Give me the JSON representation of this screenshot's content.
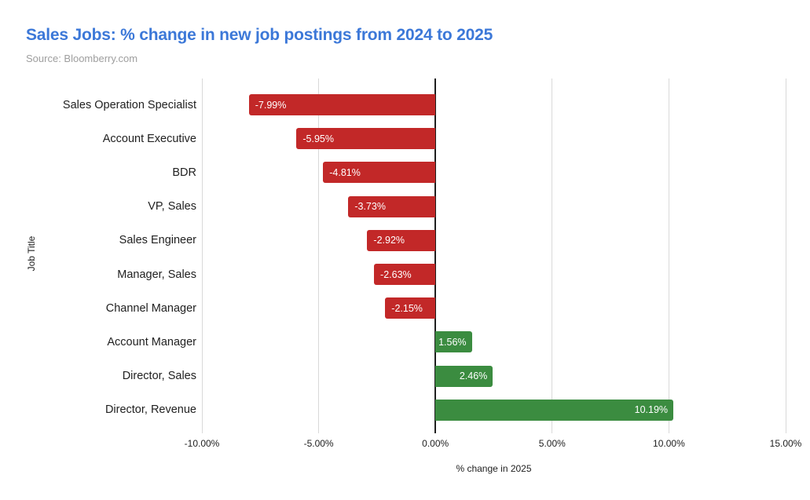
{
  "header": {
    "title": "Sales Jobs: % change in new job postings from 2024 to 2025",
    "source": "Source: Bloomberry.com"
  },
  "colors": {
    "title_text": "#3c78d8",
    "source_text": "#9e9e9e",
    "negative_bar": "#c22828",
    "positive_bar": "#3b8c40",
    "gridline": "#d9d9d9",
    "zero_line": "#1f1f1f",
    "axis_text": "#212121",
    "bar_label_text": "#ffffff",
    "background": "#ffffff"
  },
  "chart_data": {
    "type": "bar",
    "orientation": "horizontal",
    "title": "Sales Jobs: % change in new job postings from 2024 to 2025",
    "subtitle": "Source: Bloomberry.com",
    "xlabel": "% change in 2025",
    "ylabel": "Job Title",
    "grid": true,
    "legend": "none",
    "xlim": [
      -10,
      15
    ],
    "x_tick_values": [
      -10,
      -5,
      0,
      5,
      10,
      15
    ],
    "x_tick_labels": [
      "-10.00%",
      "-5.00%",
      "0.00%",
      "5.00%",
      "10.00%",
      "15.00%"
    ],
    "categories": [
      "Sales Operation Specialist",
      "Account Executive",
      "BDR",
      "VP, Sales",
      "Sales Engineer",
      "Manager, Sales",
      "Channel Manager",
      "Account Manager",
      "Director, Sales",
      "Director, Revenue"
    ],
    "values": [
      -7.99,
      -5.95,
      -4.81,
      -3.73,
      -2.92,
      -2.63,
      -2.15,
      1.56,
      2.46,
      10.19
    ],
    "value_labels": [
      "-7.99%",
      "-5.95%",
      "-4.81%",
      "-3.73%",
      "-2.92%",
      "-2.63%",
      "-2.15%",
      "1.56%",
      "2.46%",
      "10.19%"
    ]
  }
}
